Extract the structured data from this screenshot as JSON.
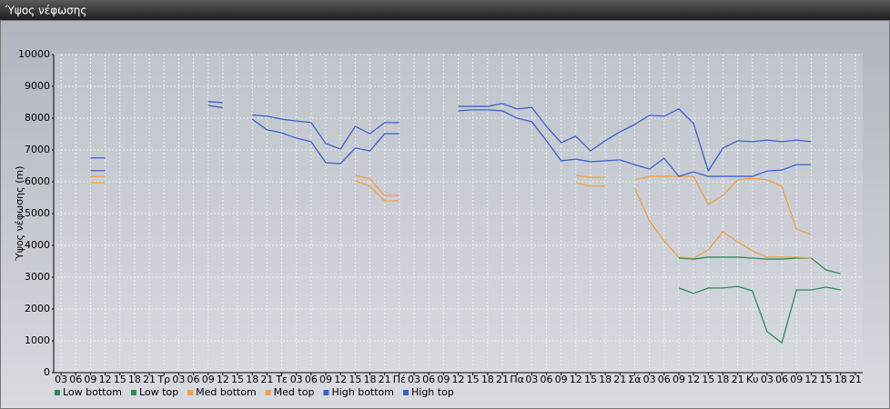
{
  "chart_data": {
    "type": "line",
    "title": "Ύψος νέφωσης",
    "y_label": "Ύψος νέφωσης (m)",
    "categories": [
      "03",
      "06",
      "09",
      "12",
      "15",
      "18",
      "21",
      "Τρ",
      "03",
      "06",
      "09",
      "12",
      "15",
      "18",
      "21",
      "Τε",
      "03",
      "06",
      "09",
      "12",
      "15",
      "18",
      "21",
      "Πέ",
      "03",
      "06",
      "09",
      "12",
      "15",
      "18",
      "21",
      "Πα",
      "03",
      "06",
      "09",
      "12",
      "15",
      "18",
      "21",
      "Σά",
      "03",
      "06",
      "09",
      "12",
      "15",
      "18",
      "21",
      "Κυ",
      "03",
      "06",
      "09",
      "12",
      "15",
      "18",
      "21"
    ],
    "ylim": [
      0,
      10000
    ],
    "yticks": [
      0,
      1000,
      2000,
      3000,
      4000,
      5000,
      6000,
      7000,
      8000,
      9000,
      10000
    ],
    "grid": true,
    "legend": "bottom",
    "series": [
      {
        "name": "Low bottom",
        "color": "#2e8b57",
        "values": [
          null,
          null,
          null,
          null,
          null,
          null,
          null,
          null,
          null,
          null,
          null,
          null,
          null,
          null,
          null,
          null,
          null,
          null,
          null,
          null,
          null,
          null,
          null,
          null,
          null,
          null,
          null,
          null,
          null,
          null,
          null,
          null,
          null,
          null,
          null,
          null,
          null,
          null,
          null,
          null,
          null,
          null,
          2660,
          2490,
          2660,
          2660,
          2710,
          2570,
          1290,
          940,
          2600,
          2600,
          2690,
          2600,
          null
        ]
      },
      {
        "name": "Low top",
        "color": "#2e8b57",
        "values": [
          null,
          null,
          null,
          null,
          null,
          null,
          null,
          null,
          null,
          null,
          null,
          null,
          null,
          null,
          null,
          null,
          null,
          null,
          null,
          null,
          null,
          null,
          null,
          null,
          null,
          null,
          null,
          null,
          null,
          null,
          null,
          null,
          null,
          null,
          null,
          null,
          null,
          null,
          null,
          null,
          null,
          null,
          3600,
          3570,
          3630,
          3630,
          3630,
          3600,
          3570,
          3570,
          3600,
          3600,
          3230,
          3110,
          null
        ]
      },
      {
        "name": "Med bottom",
        "color": "#f0a040",
        "values": [
          null,
          null,
          5970,
          5970,
          null,
          null,
          null,
          null,
          null,
          null,
          null,
          null,
          null,
          null,
          null,
          null,
          null,
          null,
          null,
          null,
          6030,
          5860,
          5400,
          5400,
          null,
          null,
          null,
          null,
          null,
          null,
          null,
          null,
          null,
          null,
          null,
          5970,
          5860,
          5860,
          null,
          5800,
          4770,
          4140,
          3630,
          3600,
          3860,
          4430,
          4110,
          3830,
          3630,
          3630,
          3630,
          3600,
          null,
          null,
          null
        ]
      },
      {
        "name": "Med top",
        "color": "#f0a040",
        "values": [
          null,
          null,
          6170,
          6170,
          null,
          null,
          null,
          null,
          null,
          null,
          null,
          null,
          null,
          null,
          null,
          null,
          null,
          null,
          null,
          null,
          6200,
          6090,
          5570,
          5570,
          null,
          null,
          null,
          null,
          null,
          null,
          null,
          null,
          null,
          null,
          null,
          6200,
          6140,
          6140,
          null,
          6060,
          6170,
          6170,
          6170,
          6170,
          5290,
          5570,
          6060,
          6110,
          6060,
          5860,
          4510,
          4340,
          null,
          null,
          null
        ]
      },
      {
        "name": "High bottom",
        "color": "#3a60d0",
        "values": [
          null,
          null,
          6350,
          6350,
          null,
          null,
          null,
          null,
          null,
          null,
          8400,
          8330,
          null,
          7970,
          7630,
          7540,
          7370,
          7260,
          6600,
          6570,
          7060,
          6970,
          7510,
          7510,
          null,
          null,
          null,
          8230,
          8260,
          8260,
          8230,
          8000,
          7890,
          7290,
          6660,
          6710,
          6630,
          6660,
          6690,
          6540,
          6400,
          6740,
          6170,
          6310,
          6170,
          6170,
          6170,
          6170,
          6340,
          6370,
          6540,
          6540,
          null,
          null,
          null
        ]
      },
      {
        "name": "High top",
        "color": "#3a60d0",
        "values": [
          null,
          null,
          6750,
          6750,
          null,
          null,
          null,
          null,
          null,
          null,
          8520,
          8490,
          null,
          8100,
          8060,
          7970,
          7910,
          7860,
          7200,
          7030,
          7740,
          7510,
          7860,
          7860,
          null,
          null,
          null,
          8370,
          8370,
          8370,
          8460,
          8290,
          8340,
          7740,
          7230,
          7430,
          6970,
          7290,
          7570,
          7800,
          8090,
          8060,
          8290,
          7830,
          6340,
          7060,
          7290,
          7260,
          7310,
          7260,
          7310,
          7260,
          null,
          null,
          null
        ]
      }
    ]
  }
}
